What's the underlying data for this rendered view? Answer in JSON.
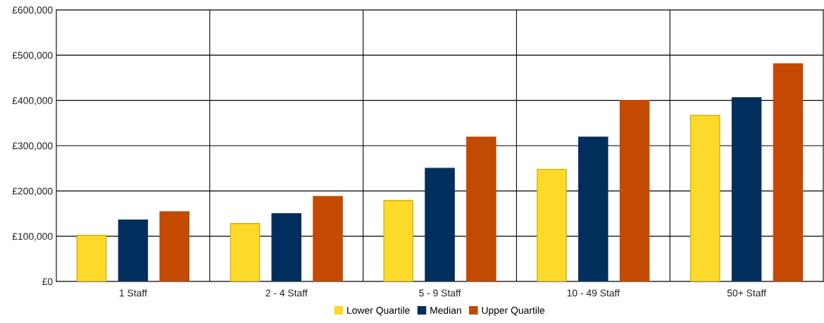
{
  "chart_data": {
    "type": "bar",
    "categories": [
      "1 Staff",
      "2 - 4 Staff",
      "5 - 9 Staff",
      "10 - 49 Staff",
      "50+ Staff"
    ],
    "series": [
      {
        "name": "Lower Quartile",
        "color": "#fdd92a",
        "values": [
          102000,
          128000,
          179000,
          248000,
          367000
        ]
      },
      {
        "name": "Median",
        "color": "#002e5d",
        "values": [
          136000,
          150000,
          250000,
          319000,
          406000
        ]
      },
      {
        "name": "Upper Quartile",
        "color": "#c34a00",
        "values": [
          154000,
          188000,
          319000,
          400000,
          481000
        ]
      }
    ],
    "ylim": [
      0,
      600000
    ],
    "yticks": [
      {
        "value": 0,
        "label": "£0"
      },
      {
        "value": 100000,
        "label": "£100,000"
      },
      {
        "value": 200000,
        "label": "£200,000"
      },
      {
        "value": 300000,
        "label": "£300,000"
      },
      {
        "value": 400000,
        "label": "£400,000"
      },
      {
        "value": 500000,
        "label": "£500,000"
      },
      {
        "value": 600000,
        "label": "£600,000"
      }
    ],
    "grid": true,
    "legend": "bottom"
  }
}
